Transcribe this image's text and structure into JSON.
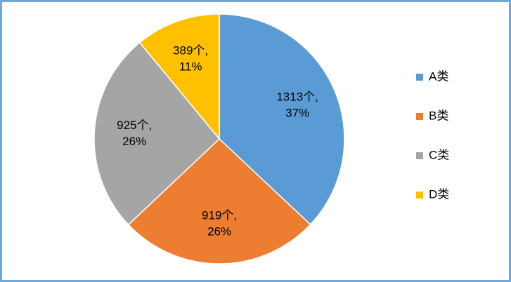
{
  "chart_data": {
    "type": "pie",
    "categories": [
      "A类",
      "B类",
      "C类",
      "D类"
    ],
    "values": [
      1313,
      919,
      925,
      389
    ],
    "value_labels": [
      [
        "1313个,",
        "37%"
      ],
      [
        "919个,",
        "26%"
      ],
      [
        "925个,",
        "26%"
      ],
      [
        "389个,",
        "11%"
      ]
    ],
    "colors": [
      "#5b9bd5",
      "#ed7d31",
      "#a5a5a5",
      "#ffc000"
    ],
    "legend": "right"
  }
}
